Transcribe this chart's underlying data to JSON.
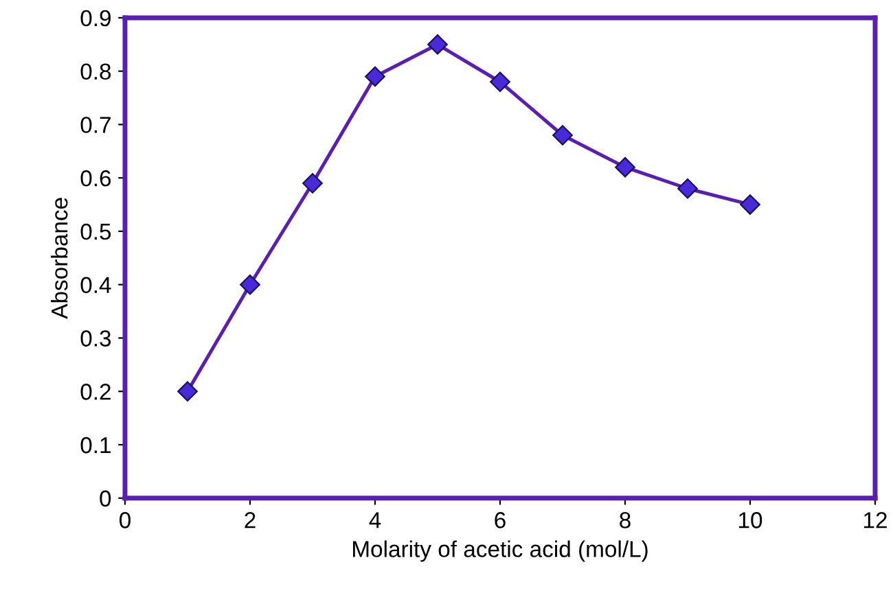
{
  "chart_data": {
    "type": "line",
    "xlabel": "Molarity of acetic acid (mol/L)",
    "ylabel": "Absorbance",
    "x": [
      1,
      2,
      3,
      4,
      5,
      6,
      7,
      8,
      9,
      10
    ],
    "series": [
      {
        "color": "#5a1fb0",
        "values": [
          0.2,
          0.4,
          0.59,
          0.79,
          0.85,
          0.78,
          0.68,
          0.62,
          0.58,
          0.55
        ]
      }
    ],
    "xlim": [
      0,
      12
    ],
    "xticks": [
      0,
      2,
      4,
      6,
      8,
      10,
      12
    ],
    "ylim": [
      0,
      0.9
    ],
    "yticks": [
      0,
      0.1,
      0.2,
      0.3,
      0.4,
      0.5,
      0.6,
      0.7,
      0.8,
      0.9
    ],
    "grid": false,
    "marker": "diamond",
    "line_style": "solid"
  }
}
